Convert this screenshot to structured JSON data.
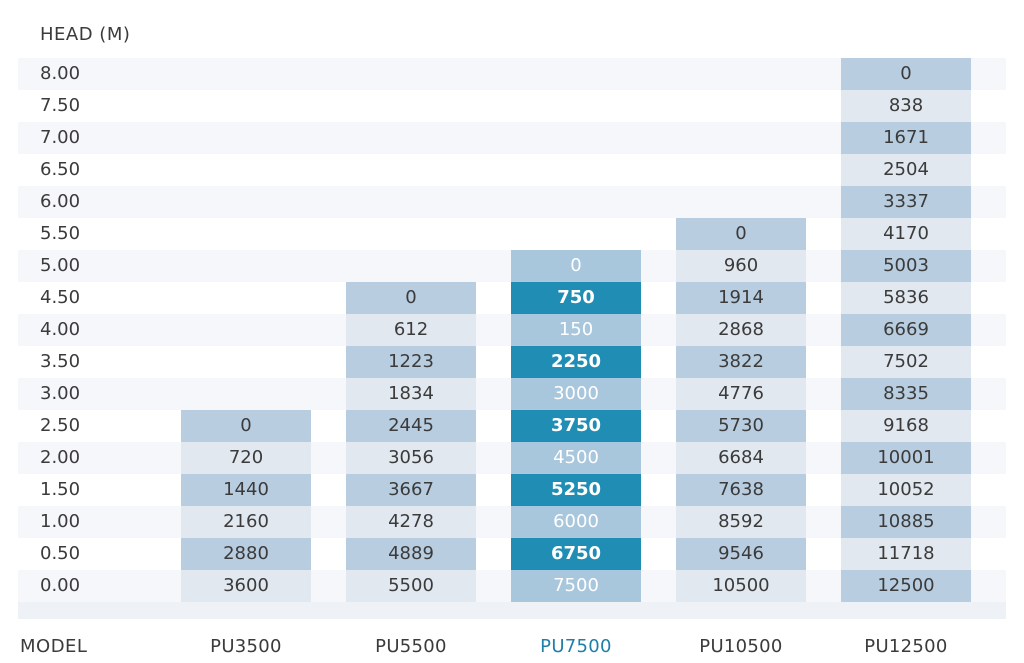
{
  "chart_data": {
    "type": "table",
    "title": "",
    "ylabel": "HEAD (M)",
    "xlabel": "MODEL",
    "head_levels": [
      "8.00",
      "7.50",
      "7.00",
      "6.50",
      "6.00",
      "5.50",
      "5.00",
      "4.50",
      "4.00",
      "3.50",
      "3.00",
      "2.50",
      "2.00",
      "1.50",
      "1.00",
      "0.50",
      "0.00"
    ],
    "series": [
      {
        "name": "PU3500",
        "values": [
          null,
          null,
          null,
          null,
          null,
          null,
          null,
          null,
          null,
          null,
          null,
          "0",
          "720",
          "1440",
          "2160",
          "2880",
          "3600"
        ]
      },
      {
        "name": "PU5500",
        "values": [
          null,
          null,
          null,
          null,
          null,
          null,
          null,
          "0",
          "612",
          "1223",
          "1834",
          "2445",
          "3056",
          "3667",
          "4278",
          "4889",
          "5500"
        ]
      },
      {
        "name": "PU7500",
        "values": [
          null,
          null,
          null,
          null,
          null,
          null,
          "0",
          "750",
          "150",
          "2250",
          "3000",
          "3750",
          "4500",
          "5250",
          "6000",
          "6750",
          "7500"
        ]
      },
      {
        "name": "PU10500",
        "values": [
          null,
          null,
          null,
          null,
          null,
          "0",
          "960",
          "1914",
          "2868",
          "3822",
          "4776",
          "5730",
          "6684",
          "7638",
          "8592",
          "9546",
          "10500"
        ]
      },
      {
        "name": "PU12500",
        "values": [
          "0",
          "838",
          "1671",
          "2504",
          "3337",
          "4170",
          "5003",
          "5836",
          "6669",
          "7502",
          "8335",
          "9168",
          "10001",
          "10052",
          "10885",
          "11718",
          "12500"
        ]
      }
    ],
    "highlighted_series": "PU7500",
    "colors": {
      "cell_light": "#e1e8f0",
      "cell_mid": "#b8cde0",
      "highlight_light": "#a8c6dc",
      "highlight_dark": "#1f8db4",
      "highlight_label": "#1f7fa8"
    }
  }
}
